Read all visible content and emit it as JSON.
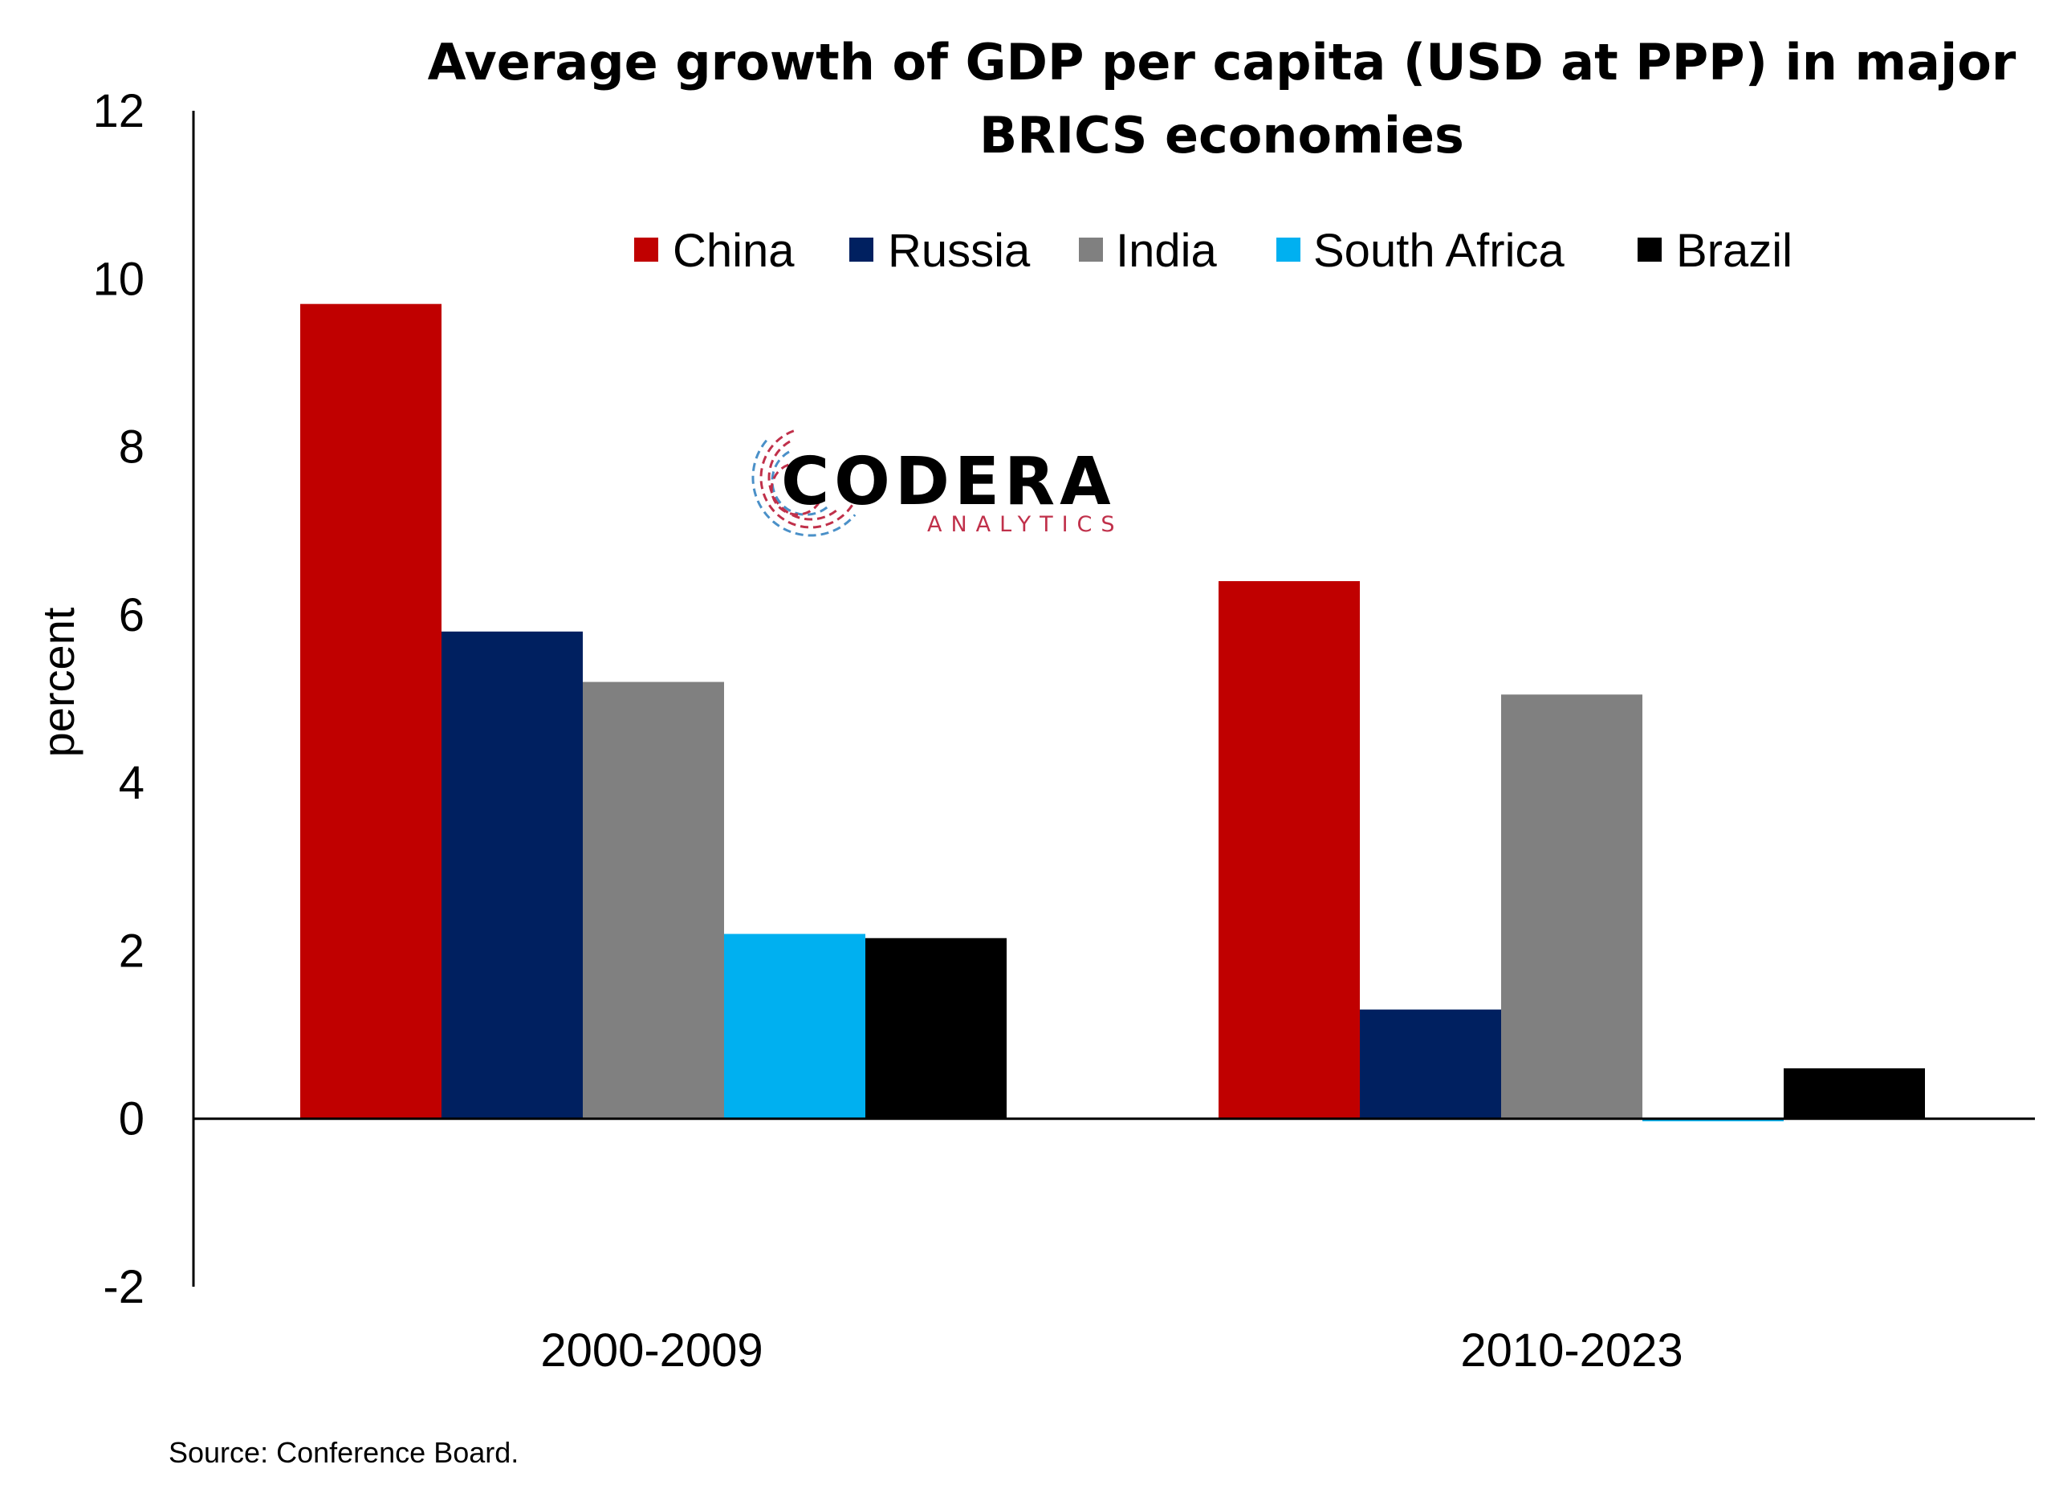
{
  "chart_data": {
    "type": "bar",
    "title_lines": [
      "Average growth of GDP per capita (USD at PPP) in major",
      "BRICS economies"
    ],
    "ylabel": "percent",
    "xlabel": "",
    "categories": [
      "2000-2009",
      "2010-2023"
    ],
    "ylim": [
      -2,
      12
    ],
    "yticks": [
      -2,
      0,
      2,
      4,
      6,
      8,
      10,
      12
    ],
    "legend_position": "top",
    "grid": false,
    "series": [
      {
        "name": "China",
        "color": "#C00000",
        "values": [
          9.7,
          6.4
        ]
      },
      {
        "name": "Russia",
        "color": "#002060",
        "values": [
          5.8,
          1.3
        ]
      },
      {
        "name": "India",
        "color": "#808080",
        "values": [
          5.2,
          5.05
        ]
      },
      {
        "name": "South Africa",
        "color": "#00B0F0",
        "values": [
          2.2,
          -0.03
        ]
      },
      {
        "name": "Brazil",
        "color": "#000000",
        "values": [
          2.15,
          0.6
        ]
      }
    ],
    "source": "Source: Conference Board."
  },
  "logo": {
    "name": "CODERA",
    "tagline": "ANALYTICS",
    "colors": {
      "red": "#C0304A",
      "blue": "#4A90C8"
    }
  }
}
